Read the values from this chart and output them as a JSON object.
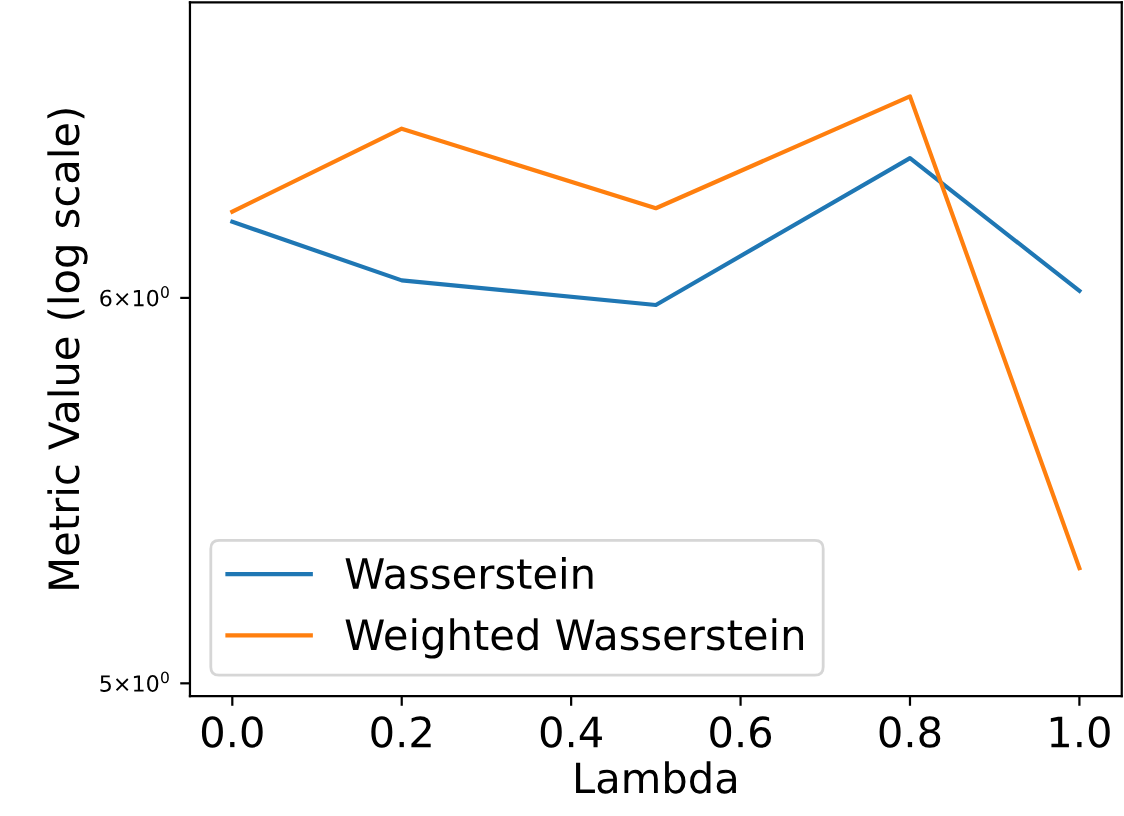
{
  "chart_data": {
    "type": "line",
    "xlabel": "Lambda",
    "ylabel": "Metric Value (log scale)",
    "log": "y",
    "x": [
      0.0,
      0.2,
      0.5,
      0.8,
      1.0
    ],
    "series": [
      {
        "name": "Wasserstein",
        "color": "#1f77b4",
        "values": [
          6.22,
          6.05,
          5.98,
          6.41,
          6.02
        ]
      },
      {
        "name": "Weighted Wasserstein",
        "color": "#ff7f0e",
        "values": [
          6.25,
          6.5,
          6.26,
          6.6,
          5.28
        ]
      }
    ],
    "xlim": [
      -0.05,
      1.05
    ],
    "ylim": [
      4.97,
      6.9
    ],
    "xticks": [
      {
        "value": 0,
        "label": "0.0"
      },
      {
        "value": 0.2,
        "label": "0.2"
      },
      {
        "value": 0.4,
        "label": "0.4"
      },
      {
        "value": 0.6,
        "label": "0.6"
      },
      {
        "value": 0.8,
        "label": "0.8"
      },
      {
        "value": 1.0,
        "label": "1.0"
      }
    ],
    "yticks": [
      {
        "value": 5,
        "label": "5×10$^{0}$"
      },
      {
        "value": 6,
        "label": "6×10$^{0}$"
      }
    ],
    "legend": "bottom left",
    "grid": false,
    "line_style": "solid"
  }
}
